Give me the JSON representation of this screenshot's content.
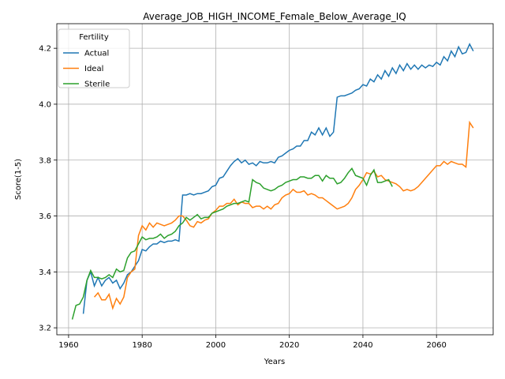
{
  "chart_data": {
    "type": "line",
    "title": "Average_JOB_HIGH_INCOME_Female_Below_Average_IQ",
    "x_label": "Years",
    "y_label": "Score(1-5)",
    "legend_title": "Fertility",
    "legend": "upper left",
    "grid": true,
    "xlim": [
      1956.8,
      2075.4
    ],
    "xticks": [
      1960,
      1980,
      2000,
      2020,
      2040,
      2060
    ],
    "ylim": [
      3.175,
      4.288
    ],
    "yticks": [
      3.2,
      3.4,
      3.6,
      3.8,
      {
        "value": 4,
        "label": "4.0"
      },
      4.2
    ],
    "x": [
      1961,
      1962,
      1963,
      1964,
      1965,
      1966,
      1967,
      1968,
      1969,
      1970,
      1971,
      1972,
      1973,
      1974,
      1975,
      1976,
      1977,
      1978,
      1979,
      1980,
      1981,
      1982,
      1983,
      1984,
      1985,
      1986,
      1987,
      1988,
      1989,
      1990,
      1991,
      1992,
      1993,
      1994,
      1995,
      1996,
      1997,
      1998,
      1999,
      2000,
      2001,
      2002,
      2003,
      2004,
      2005,
      2006,
      2007,
      2008,
      2009,
      2010,
      2011,
      2012,
      2013,
      2014,
      2015,
      2016,
      2017,
      2018,
      2019,
      2020,
      2021,
      2022,
      2023,
      2024,
      2025,
      2026,
      2027,
      2028,
      2029,
      2030,
      2031,
      2032,
      2033,
      2034,
      2035,
      2036,
      2037,
      2038,
      2039,
      2040,
      2041,
      2042,
      2043,
      2044,
      2045,
      2046,
      2047,
      2048,
      2049,
      2050,
      2051,
      2052,
      2053,
      2054,
      2055,
      2056,
      2057,
      2058,
      2059,
      2060,
      2061,
      2062,
      2063,
      2064,
      2065,
      2066,
      2067,
      2068,
      2069,
      2070
    ],
    "series": [
      {
        "name": "Actual",
        "color": "#1f77b4",
        "values": [
          null,
          null,
          null,
          3.25,
          3.37,
          3.4,
          3.35,
          3.38,
          3.35,
          3.37,
          3.38,
          3.36,
          3.37,
          3.34,
          3.36,
          3.39,
          3.4,
          3.42,
          3.44,
          3.48,
          3.475,
          3.49,
          3.5,
          3.5,
          3.51,
          3.505,
          3.51,
          3.51,
          3.515,
          3.51,
          3.675,
          3.675,
          3.68,
          3.675,
          3.68,
          3.68,
          3.685,
          3.69,
          3.705,
          3.71,
          3.735,
          3.74,
          3.76,
          3.78,
          3.795,
          3.805,
          3.79,
          3.8,
          3.785,
          3.79,
          3.78,
          3.795,
          3.79,
          3.79,
          3.795,
          3.79,
          3.81,
          3.815,
          3.825,
          3.835,
          3.84,
          3.85,
          3.85,
          3.87,
          3.87,
          3.9,
          3.89,
          3.915,
          3.89,
          3.915,
          3.885,
          3.9,
          4.025,
          4.03,
          4.03,
          4.035,
          4.04,
          4.05,
          4.055,
          4.07,
          4.065,
          4.09,
          4.08,
          4.105,
          4.09,
          4.12,
          4.1,
          4.13,
          4.11,
          4.14,
          4.12,
          4.145,
          4.125,
          4.14,
          4.125,
          4.14,
          4.13,
          4.14,
          4.135,
          4.15,
          4.14,
          4.17,
          4.155,
          4.19,
          4.17,
          4.205,
          4.18,
          4.185,
          4.215,
          4.19
        ]
      },
      {
        "name": "Ideal",
        "color": "#ff7f0e",
        "values": [
          null,
          null,
          null,
          null,
          null,
          null,
          3.31,
          3.325,
          3.3,
          3.3,
          3.32,
          3.27,
          3.305,
          3.285,
          3.31,
          3.38,
          3.4,
          3.41,
          3.53,
          3.565,
          3.55,
          3.575,
          3.56,
          3.575,
          3.57,
          3.565,
          3.57,
          3.575,
          3.585,
          3.6,
          3.6,
          3.585,
          3.565,
          3.56,
          3.58,
          3.575,
          3.585,
          3.59,
          3.61,
          3.62,
          3.635,
          3.635,
          3.645,
          3.645,
          3.66,
          3.64,
          3.65,
          3.645,
          3.645,
          3.63,
          3.635,
          3.635,
          3.625,
          3.635,
          3.625,
          3.64,
          3.645,
          3.665,
          3.675,
          3.68,
          3.695,
          3.685,
          3.685,
          3.69,
          3.675,
          3.68,
          3.675,
          3.665,
          3.665,
          3.655,
          3.645,
          3.635,
          3.625,
          3.63,
          3.635,
          3.645,
          3.665,
          3.695,
          3.71,
          3.73,
          3.755,
          3.75,
          3.76,
          3.74,
          3.745,
          3.73,
          3.725,
          3.72,
          3.715,
          3.705,
          3.69,
          3.695,
          3.69,
          3.695,
          3.705,
          3.72,
          3.735,
          3.75,
          3.765,
          3.78,
          3.78,
          3.795,
          3.785,
          3.795,
          3.79,
          3.785,
          3.785,
          3.775,
          3.935,
          3.915
        ]
      },
      {
        "name": "Sterile",
        "color": "#2ca02c",
        "values": [
          3.23,
          3.28,
          3.285,
          3.31,
          3.37,
          3.405,
          3.38,
          3.38,
          3.375,
          3.38,
          3.39,
          3.38,
          3.41,
          3.4,
          3.405,
          3.45,
          3.47,
          3.475,
          3.5,
          3.525,
          3.515,
          3.52,
          3.52,
          3.525,
          3.535,
          3.52,
          3.53,
          3.535,
          3.545,
          3.565,
          3.575,
          3.595,
          3.585,
          3.595,
          3.605,
          3.59,
          3.595,
          3.595,
          3.61,
          3.615,
          3.62,
          3.625,
          3.635,
          3.64,
          3.645,
          3.645,
          3.65,
          3.655,
          3.65,
          3.73,
          3.72,
          3.715,
          3.7,
          3.695,
          3.69,
          3.695,
          3.705,
          3.71,
          3.72,
          3.725,
          3.73,
          3.73,
          3.74,
          3.74,
          3.735,
          3.735,
          3.745,
          3.745,
          3.725,
          3.745,
          3.735,
          3.735,
          3.715,
          3.72,
          3.735,
          3.755,
          3.77,
          3.745,
          3.74,
          3.735,
          3.71,
          3.745,
          3.765,
          3.72,
          3.72,
          3.725,
          3.73,
          3.705,
          null,
          null,
          null,
          null,
          null,
          null,
          null,
          null,
          null,
          null,
          null,
          null,
          null,
          null,
          null,
          null,
          null,
          null,
          null,
          null,
          null,
          null
        ]
      }
    ]
  }
}
